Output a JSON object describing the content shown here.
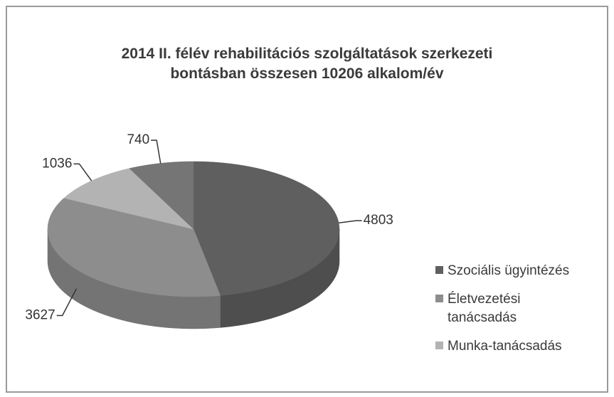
{
  "chart_data": {
    "type": "pie3d",
    "title": "2014 II. félév rehabilitációs szolgáltatások szerkezeti\nbontásban összesen 10206 alkalom/év",
    "categories": [
      "Szociális ügyintézés",
      "Életvezetési\ntanácsadás",
      "Munka-tanácsadás",
      null
    ],
    "values": [
      4803,
      3627,
      1036,
      740
    ],
    "colors": [
      "#5f5f5f",
      "#8d8d8d",
      "#b3b3b3",
      "#757575"
    ],
    "legend": "right"
  }
}
